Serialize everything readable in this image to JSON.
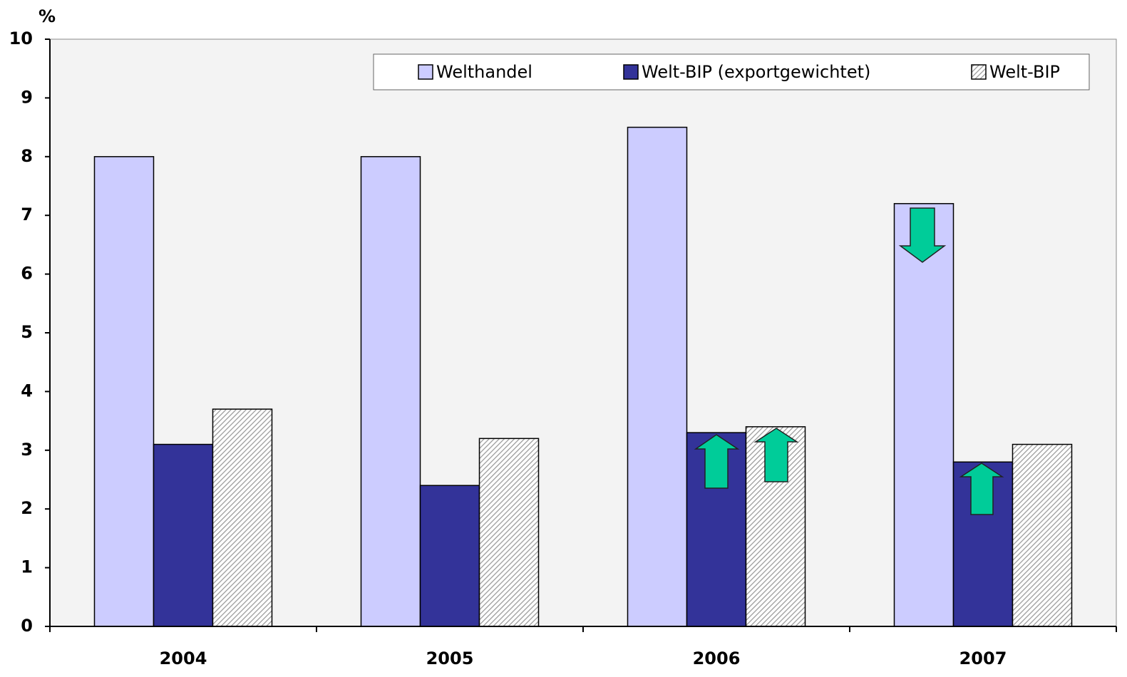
{
  "chart_data": {
    "type": "bar",
    "y_label": "%",
    "categories": [
      "2004",
      "2005",
      "2006",
      "2007"
    ],
    "series": [
      {
        "name": "Welthandel",
        "color": "#ccccff",
        "values": [
          8,
          8,
          8.5,
          7.2
        ]
      },
      {
        "name": "Welt-BIP (exportgewichtet)",
        "color": "#333399",
        "values": [
          3.1,
          2.4,
          3.3,
          2.8
        ]
      },
      {
        "name": "Welt-BIP",
        "color": "#999999",
        "hatch": true,
        "values": [
          3.7,
          3.2,
          3.4,
          3.1
        ]
      }
    ],
    "ylim": [
      0,
      10
    ],
    "yticks": [
      0,
      1,
      2,
      3,
      4,
      5,
      6,
      7,
      8,
      9,
      10
    ]
  }
}
